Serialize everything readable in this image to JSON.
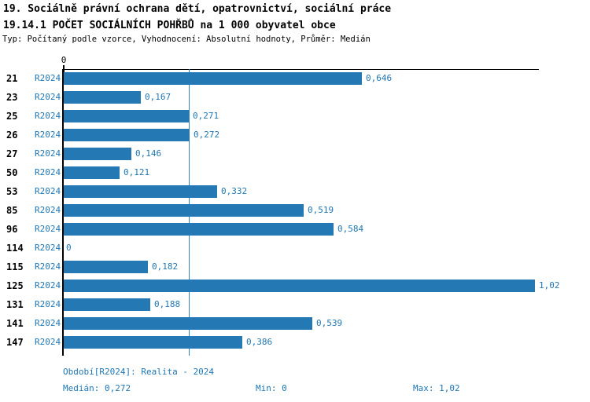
{
  "header": {
    "line1": "19. Sociálně právní ochrana dětí, opatrovnictví, sociální práce",
    "line2": "19.14.1 POČET SOCIÁLNÍCH POHŘBŮ na 1 000 obyvatel obce",
    "subtitle": "Typ: Počítaný podle vzorce, Vyhodnocení: Absolutní hodnoty, Průměr: Medián"
  },
  "chart": {
    "zero_label": "0"
  },
  "chart_data": {
    "type": "bar",
    "orientation": "horizontal",
    "title": "19.14.1 POČET SOCIÁLNÍCH POHŘBŮ na 1 000 obyvatel obce",
    "categories": [
      "21",
      "23",
      "25",
      "26",
      "27",
      "50",
      "53",
      "85",
      "96",
      "114",
      "115",
      "125",
      "131",
      "141",
      "147"
    ],
    "series": [
      {
        "name": "R2024",
        "values": [
          0.646,
          0.167,
          0.271,
          0.272,
          0.146,
          0.121,
          0.332,
          0.519,
          0.584,
          0,
          0.182,
          1.02,
          0.188,
          0.539,
          0.386
        ]
      }
    ],
    "value_labels": [
      "0,646",
      "0,167",
      "0,271",
      "0,272",
      "0,146",
      "0,121",
      "0,332",
      "0,519",
      "0,584",
      "0",
      "0,182",
      "1,02",
      "0,188",
      "0,539",
      "0,386"
    ],
    "xlim": [
      0,
      1.0285
    ],
    "median": 0.272,
    "min": 0,
    "max": 1.02,
    "gridlines": [
      "median"
    ],
    "legend_position": "none"
  },
  "colors": {
    "bar": "#2478b4",
    "accent_text": "#1f77b4",
    "median_line": "#2e86c1",
    "axis": "#000000"
  },
  "footer": {
    "period": "Období[R2024]: Realita - 2024",
    "median": "Medián: 0,272",
    "min": "Min: 0",
    "max": "Max: 1,02"
  }
}
